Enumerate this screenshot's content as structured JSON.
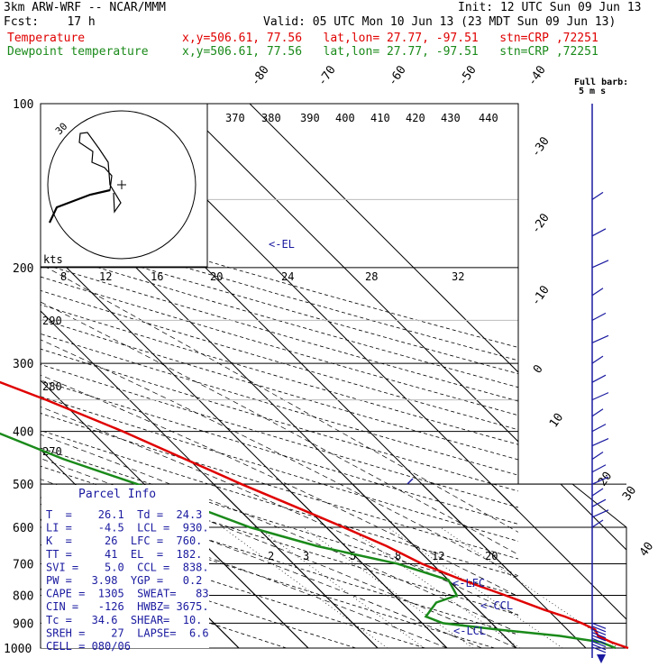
{
  "header": {
    "model": "3km ARW-WRF -- NCAR/MMM",
    "init": "Init: 12 UTC Sun 09 Jun 13",
    "fcst": "Fcst:    17 h",
    "valid": "Valid: 05 UTC Mon 10 Jun 13 (23 MDT Sun 09 Jun 13)",
    "temp_label": "Temperature",
    "temp_loc": "x,y=506.61, 77.56   lat,lon= 27.77, -97.51   stn=CRP ,72251",
    "dew_label": "Dewpoint temperature",
    "dew_loc": "x,y=506.61, 77.56   lat,lon= 27.77, -97.51   stn=CRP ,72251"
  },
  "full_barb": "Full barb:",
  "full_barb_unit": "5 m s",
  "colors": {
    "temperature": "#e00000",
    "dewpoint": "#1a8a1a",
    "wind": "#1a1aa0",
    "parcel": "#1a1aa0"
  },
  "chart_data": {
    "type": "skew-t",
    "pressure_axis_ticks": [
      "100",
      "200",
      "300",
      "400",
      "500",
      "600",
      "700",
      "800",
      "900",
      "1000"
    ],
    "temperature_ticks": [
      "-80",
      "-70",
      "-60",
      "-50",
      "-40",
      "-30",
      "-20",
      "-10",
      "0",
      "10",
      "20",
      "30",
      "40"
    ],
    "theta_labels": [
      "370",
      "380",
      "390",
      "400",
      "410",
      "420",
      "430",
      "440"
    ],
    "mixing_ratio_labels": [
      "8",
      "12",
      "16",
      "20",
      "24",
      "28",
      "32"
    ],
    "mixing_ratio_low_labels": [
      "2",
      "3",
      "5",
      "8",
      "12",
      "20"
    ],
    "theta_e_side_labels": [
      "290",
      "280",
      "270"
    ],
    "annotations": [
      "<-EL",
      "<-LFC",
      "<-CCL",
      "<-LCL"
    ],
    "temperature_profile": [
      {
        "p": 1000,
        "t": 26.1
      },
      {
        "p": 975,
        "t": 24.5
      },
      {
        "p": 950,
        "t": 23.5
      },
      {
        "p": 925,
        "t": 24.0
      },
      {
        "p": 900,
        "t": 23.0
      },
      {
        "p": 875,
        "t": 21.5
      },
      {
        "p": 850,
        "t": 19.5
      },
      {
        "p": 800,
        "t": 16.0
      },
      {
        "p": 750,
        "t": 12.0
      },
      {
        "p": 700,
        "t": 8.5
      },
      {
        "p": 650,
        "t": 6.0
      },
      {
        "p": 600,
        "t": 2.5
      },
      {
        "p": 550,
        "t": -1.5
      },
      {
        "p": 500,
        "t": -6.0
      },
      {
        "p": 450,
        "t": -10.5
      },
      {
        "p": 400,
        "t": -15.5
      },
      {
        "p": 350,
        "t": -22.0
      },
      {
        "p": 300,
        "t": -30.5
      },
      {
        "p": 250,
        "t": -41.0
      },
      {
        "p": 200,
        "t": -53.0
      },
      {
        "p": 180,
        "t": -58.5
      },
      {
        "p": 150,
        "t": -60.0
      },
      {
        "p": 125,
        "t": -66.0
      },
      {
        "p": 100,
        "t": -72.0
      }
    ],
    "dewpoint_profile": [
      {
        "p": 1000,
        "t": 24.3
      },
      {
        "p": 975,
        "t": 23.0
      },
      {
        "p": 950,
        "t": 18.0
      },
      {
        "p": 925,
        "t": 10.0
      },
      {
        "p": 900,
        "t": 3.0
      },
      {
        "p": 875,
        "t": 1.5
      },
      {
        "p": 825,
        "t": 5.0
      },
      {
        "p": 800,
        "t": 9.0
      },
      {
        "p": 750,
        "t": 10.0
      },
      {
        "p": 700,
        "t": 5.0
      },
      {
        "p": 650,
        "t": -4.0
      },
      {
        "p": 600,
        "t": -11.0
      },
      {
        "p": 550,
        "t": -16.0
      },
      {
        "p": 500,
        "t": -21.0
      },
      {
        "p": 450,
        "t": -28.0
      },
      {
        "p": 400,
        "t": -34.0
      },
      {
        "p": 360,
        "t": -40.0
      },
      {
        "p": 340,
        "t": -36.0
      },
      {
        "p": 310,
        "t": -27.0
      },
      {
        "p": 280,
        "t": -34.0
      },
      {
        "p": 250,
        "t": -44.0
      },
      {
        "p": 200,
        "t": -63.0
      },
      {
        "p": 180,
        "t": -70.0
      },
      {
        "p": 150,
        "t": -80.0
      },
      {
        "p": 125,
        "t": -86.0
      },
      {
        "p": 100,
        "t": -85.0
      }
    ],
    "hodograph_speed_label": "kts",
    "hodograph_ring_label": "30",
    "parcel_info": {
      "title": "Parcel Info",
      "lines": [
        "T  =    26.1  Td =  24.3",
        "LI =    -4.5  LCL =  930.",
        "K  =     26  LFC =  760.",
        "TT =     41  EL  =  182.",
        "SVI =    5.0  CCL =  838.",
        "PW =   3.98  YGP =   0.2",
        "CAPE =  1305  SWEAT=   83",
        "CIN =   -126  HWBZ= 3675.",
        "Tc =   34.6  SHEAR=  10.",
        "SREH =    27  LAPSE=  6.6",
        "CELL = 080/06"
      ]
    }
  }
}
